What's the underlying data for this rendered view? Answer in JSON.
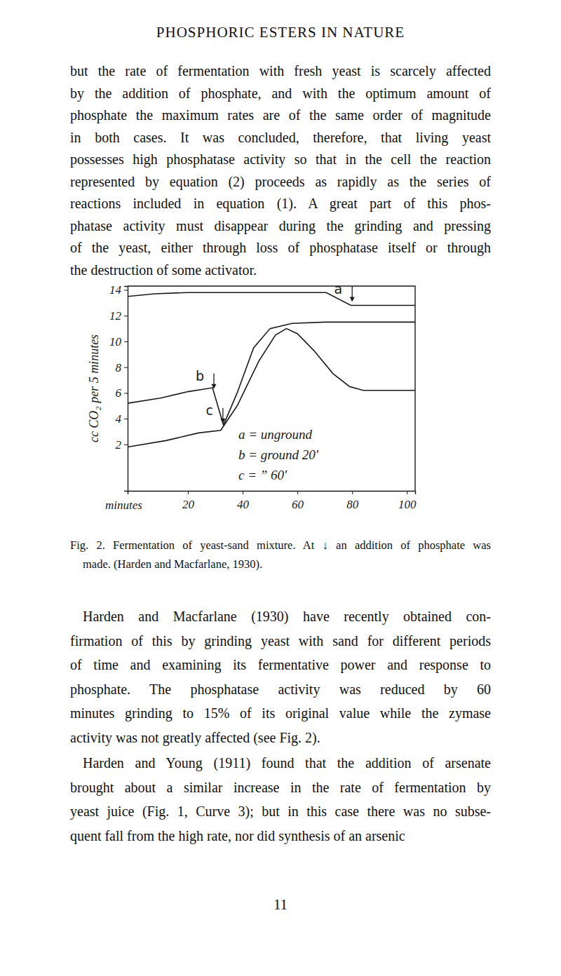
{
  "header": "PHOSPHORIC ESTERS IN NATURE",
  "body": [
    {
      "lines": [
        "but the rate of fermentation with fresh yeast is scarcely affected",
        "by the addition of phosphate, and with the optimum amount of",
        "phosphate the maximum rates are of the same order of magnitude",
        "in both cases. It was concluded, therefore, that living yeast",
        "possesses high phosphatase activity so that in the cell the reaction",
        "represented by equation (2) proceeds as rapidly as the series of",
        "reactions included in equation (1). A great part of this phos-",
        "phatase activity must disappear during the grinding and pressing",
        "of the yeast, either through loss of phosphatase itself or through",
        "the destruction of some activator."
      ]
    },
    {
      "lines": [
        "Harden and Macfarlane (1930) have recently obtained con-",
        "firmation of this by grinding yeast with sand for different periods",
        "of time and examining its fermentative power and response to",
        "phosphate. The phosphatase activity was reduced by 60",
        "minutes grinding to 15% of its original value while the zymase",
        "activity was not greatly affected (see Fig. 2)."
      ]
    },
    {
      "lines": [
        "Harden and Young (1911) found that the addition of arsenate",
        "brought about a similar increase in the rate of fermentation by",
        "yeast juice (Fig. 1, Curve 3); but in this case there was no subse-",
        "quent fall from the high rate, nor did synthesis of an arsenic"
      ]
    }
  ],
  "caption": {
    "lines": [
      "Fig. 2. Fermentation of yeast-sand mixture. At ↓ an addition of phosphate was",
      "made. (Harden and Macfarlane, 1930)."
    ]
  },
  "page_number": "11",
  "chart_data": {
    "type": "line",
    "xlabel": "minutes",
    "ylabel": "cc CO₂ per 5 minutes",
    "xlim": [
      -2,
      103
    ],
    "ylim": [
      -1.6,
      14.3
    ],
    "xticks": [
      20,
      40,
      60,
      80,
      100
    ],
    "yticks": [
      2,
      4,
      6,
      8,
      10,
      12,
      14
    ],
    "annotations": [
      "a = unground",
      "b = ground 20'",
      "c = ” 60'"
    ],
    "series": [
      {
        "name": "a",
        "color": "#1a1a1a",
        "phosphate_x": 80,
        "x": [
          -2,
          8,
          20,
          68,
          70.5,
          79.5,
          90,
          103
        ],
        "values": [
          13.5,
          13.7,
          13.8,
          13.8,
          13.8,
          12.8,
          12.8,
          12.8
        ]
      },
      {
        "name": "b",
        "color": "#1a1a1a",
        "phosphate_x": 29.5,
        "x": [
          -2,
          10,
          20,
          29,
          33,
          38,
          44,
          50,
          58,
          70,
          103
        ],
        "values": [
          5.2,
          5.6,
          6.1,
          6.4,
          3.5,
          6.0,
          9.5,
          11.0,
          11.4,
          11.5,
          11.5
        ]
      },
      {
        "name": "c",
        "color": "#1a1a1a",
        "phosphate_x": 32.8,
        "x": [
          -2,
          12,
          24,
          32,
          38,
          46,
          52,
          56,
          60,
          66,
          73,
          79,
          84,
          103
        ],
        "values": [
          1.8,
          2.3,
          2.9,
          3.1,
          5.0,
          8.5,
          10.5,
          11.0,
          10.6,
          9.3,
          7.5,
          6.5,
          6.2,
          6.2
        ]
      }
    ]
  }
}
